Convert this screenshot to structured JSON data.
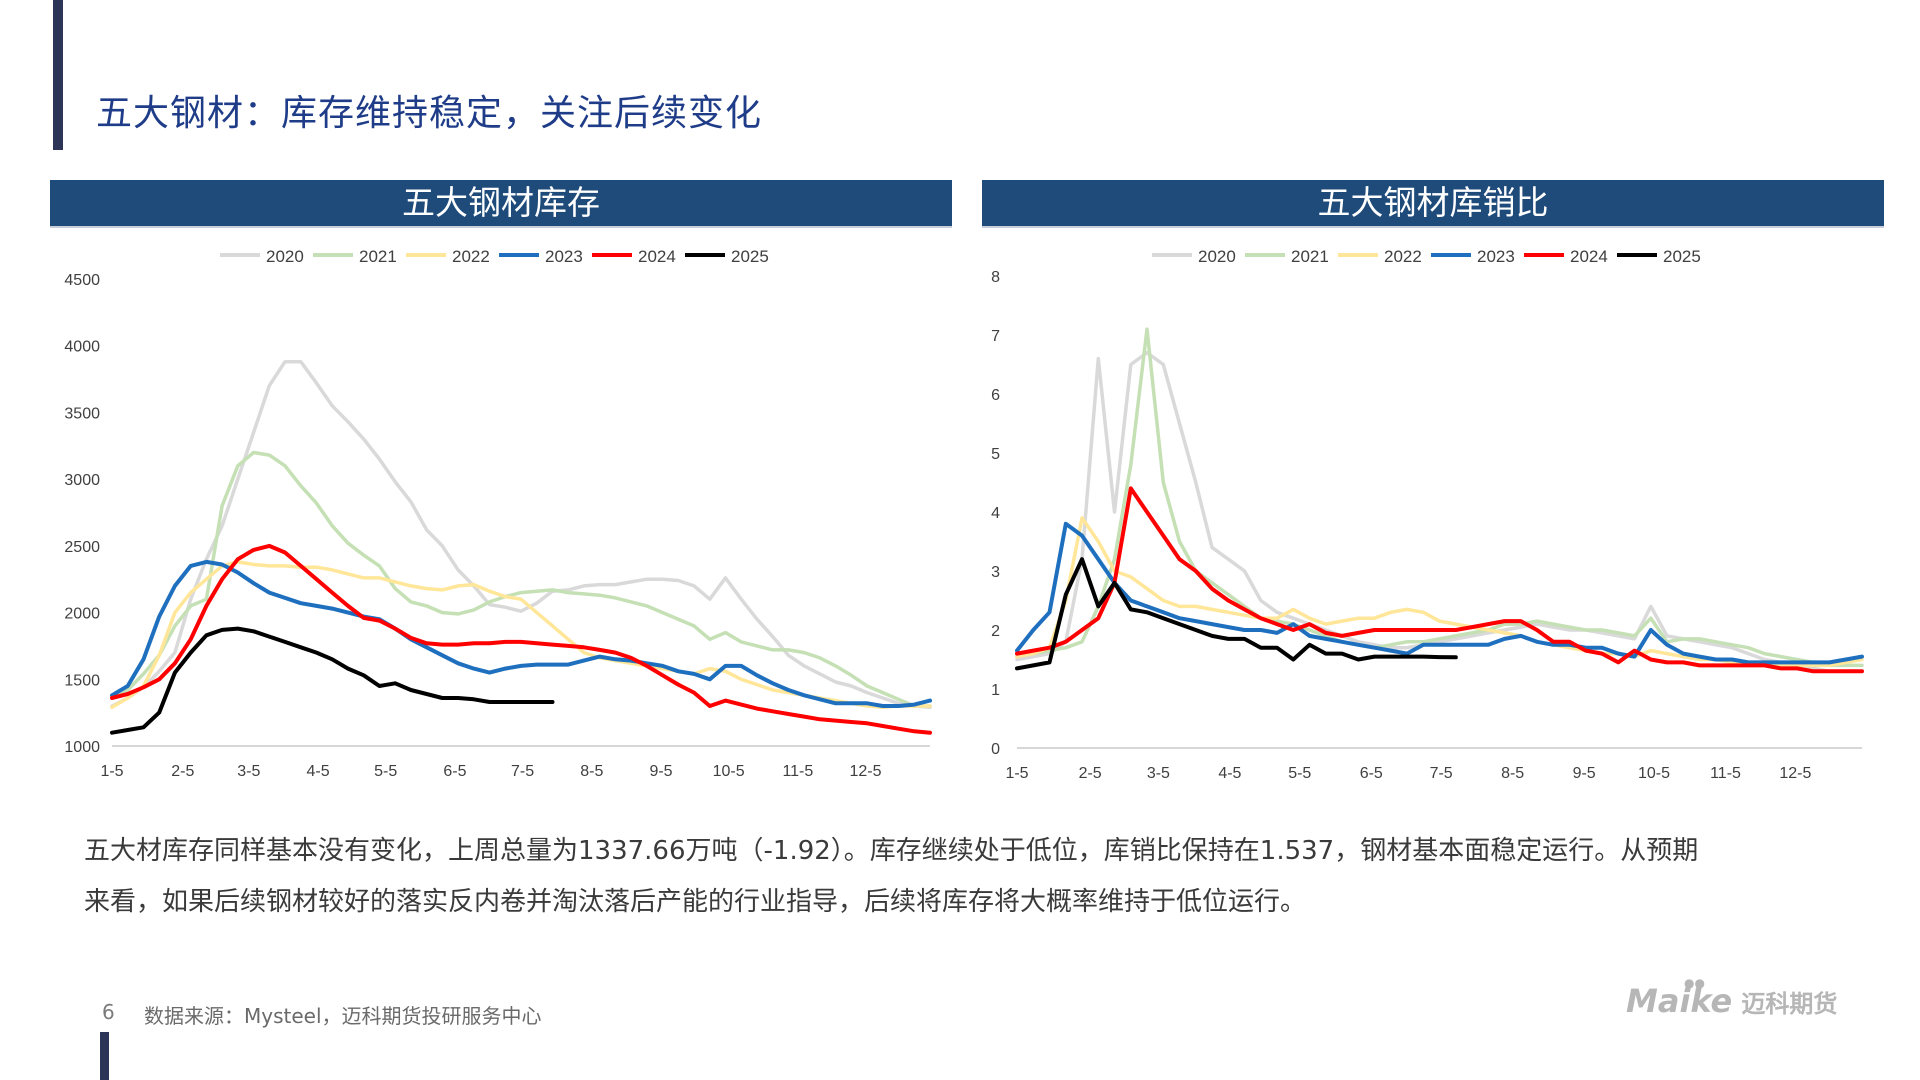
{
  "slide": {
    "title": "五大钢材：库存维持稳定，关注后续变化",
    "paragraph_line1": "五大材库存同样基本没有变化，上周总量为1337.66万吨（-1.92）。库存继续处于低位，库销比保持在1.537，钢材基本面稳定运行。从预期",
    "paragraph_line2": "来看，如果后续钢材较好的落实反内卷并淘汰落后产能的行业指导，后续将库存将大概率维持于低位运行。",
    "page_number": "6",
    "source": "数据来源：Mysteel，迈科期货投研服务中心",
    "logo_mark": "Maike",
    "logo_text": "迈科期货"
  },
  "series_colors": {
    "2020": "#d9d9d9",
    "2021": "#c5e0b4",
    "2022": "#ffe699",
    "2023": "#1f6fbf",
    "2024": "#ff0000",
    "2025": "#000000"
  },
  "chart_data": [
    {
      "type": "line",
      "title": "五大钢材库存",
      "xlabel": "",
      "ylabel": "",
      "xlim": [
        1,
        53
      ],
      "ylim": [
        1000,
        4500
      ],
      "yticks": [
        1000,
        1500,
        2000,
        2500,
        3000,
        3500,
        4000,
        4500
      ],
      "xticks": [
        {
          "label": "1-5",
          "week": 1
        },
        {
          "label": "2-5",
          "week": 5.5
        },
        {
          "label": "3-5",
          "week": 9.7
        },
        {
          "label": "4-5",
          "week": 14.1
        },
        {
          "label": "5-5",
          "week": 18.4
        },
        {
          "label": "6-5",
          "week": 22.8
        },
        {
          "label": "7-5",
          "week": 27.1
        },
        {
          "label": "8-5",
          "week": 31.5
        },
        {
          "label": "9-5",
          "week": 35.9
        },
        {
          "label": "10-5",
          "week": 40.2
        },
        {
          "label": "11-5",
          "week": 44.6
        },
        {
          "label": "12-5",
          "week": 48.9
        }
      ],
      "grid": false,
      "legend": "top-center",
      "series": [
        {
          "name": "2020",
          "values": [
            1300,
            1360,
            1440,
            1560,
            1700,
            2100,
            2400,
            2650,
            3000,
            3350,
            3700,
            3880,
            3880,
            3720,
            3550,
            3430,
            3300,
            3150,
            2980,
            2830,
            2620,
            2500,
            2320,
            2200,
            2060,
            2040,
            2010,
            2070,
            2160,
            2170,
            2200,
            2210,
            2210,
            2230,
            2250,
            2250,
            2240,
            2200,
            2100,
            2260,
            2100,
            1950,
            1820,
            1680,
            1600,
            1540,
            1480,
            1450,
            1400,
            1360,
            1320,
            1300,
            1290
          ]
        },
        {
          "name": "2021",
          "values": [
            1360,
            1420,
            1540,
            1680,
            1900,
            2050,
            2100,
            2800,
            3100,
            3200,
            3180,
            3100,
            2950,
            2820,
            2650,
            2520,
            2430,
            2350,
            2180,
            2080,
            2050,
            2000,
            1990,
            2020,
            2080,
            2120,
            2150,
            2160,
            2170,
            2150,
            2140,
            2130,
            2110,
            2080,
            2050,
            2000,
            1950,
            1900,
            1800,
            1850,
            1780,
            1750,
            1720,
            1720,
            1700,
            1660,
            1600,
            1530,
            1450,
            1400,
            1350,
            1300,
            1300
          ]
        },
        {
          "name": "2022",
          "values": [
            1290,
            1360,
            1450,
            1680,
            2000,
            2150,
            2250,
            2350,
            2380,
            2360,
            2350,
            2350,
            2340,
            2340,
            2320,
            2290,
            2260,
            2260,
            2230,
            2200,
            2180,
            2170,
            2200,
            2210,
            2160,
            2120,
            2100,
            2000,
            1900,
            1800,
            1700,
            1660,
            1640,
            1620,
            1600,
            1580,
            1560,
            1540,
            1580,
            1560,
            1500,
            1460,
            1420,
            1400,
            1380,
            1360,
            1340,
            1320,
            1300,
            1290,
            1300,
            1300,
            1300
          ]
        },
        {
          "name": "2023",
          "values": [
            1380,
            1450,
            1650,
            1970,
            2200,
            2350,
            2380,
            2360,
            2300,
            2220,
            2150,
            2110,
            2070,
            2050,
            2030,
            2000,
            1970,
            1950,
            1880,
            1800,
            1740,
            1680,
            1620,
            1580,
            1550,
            1580,
            1600,
            1610,
            1610,
            1610,
            1640,
            1670,
            1650,
            1640,
            1620,
            1600,
            1560,
            1540,
            1500,
            1600,
            1600,
            1530,
            1470,
            1420,
            1380,
            1350,
            1320,
            1320,
            1320,
            1300,
            1300,
            1310,
            1340
          ]
        },
        {
          "name": "2024",
          "values": [
            1360,
            1390,
            1440,
            1500,
            1620,
            1800,
            2050,
            2250,
            2400,
            2470,
            2500,
            2450,
            2350,
            2250,
            2150,
            2050,
            1960,
            1940,
            1880,
            1810,
            1770,
            1760,
            1760,
            1770,
            1770,
            1780,
            1780,
            1770,
            1760,
            1750,
            1740,
            1720,
            1700,
            1660,
            1600,
            1530,
            1460,
            1400,
            1300,
            1340,
            1310,
            1280,
            1260,
            1240,
            1220,
            1200,
            1190,
            1180,
            1170,
            1150,
            1130,
            1110,
            1100
          ]
        },
        {
          "name": "2025",
          "values": [
            1100,
            1120,
            1140,
            1250,
            1550,
            1700,
            1830,
            1870,
            1880,
            1860,
            1820,
            1780,
            1740,
            1700,
            1650,
            1580,
            1530,
            1450,
            1470,
            1420,
            1390,
            1360,
            1360,
            1350,
            1330,
            1330,
            1330,
            1330,
            1330
          ]
        }
      ]
    },
    {
      "type": "line",
      "title": "五大钢材库销比",
      "xlabel": "",
      "ylabel": "",
      "xlim": [
        1,
        53
      ],
      "ylim": [
        0,
        8
      ],
      "yticks": [
        0,
        1,
        2,
        3,
        4,
        5,
        6,
        7,
        8
      ],
      "xticks": [
        {
          "label": "1-5",
          "week": 1
        },
        {
          "label": "2-5",
          "week": 5.5
        },
        {
          "label": "3-5",
          "week": 9.7
        },
        {
          "label": "4-5",
          "week": 14.1
        },
        {
          "label": "5-5",
          "week": 18.4
        },
        {
          "label": "6-5",
          "week": 22.8
        },
        {
          "label": "7-5",
          "week": 27.1
        },
        {
          "label": "8-5",
          "week": 31.5
        },
        {
          "label": "9-5",
          "week": 35.9
        },
        {
          "label": "10-5",
          "week": 40.2
        },
        {
          "label": "11-5",
          "week": 44.6
        },
        {
          "label": "12-5",
          "week": 48.9
        }
      ],
      "grid": false,
      "legend": "top-center",
      "series": [
        {
          "name": "2020",
          "values": [
            1.5,
            1.55,
            1.6,
            1.8,
            3.2,
            6.6,
            4.0,
            6.5,
            6.7,
            6.5,
            5.5,
            4.5,
            3.4,
            3.2,
            3.0,
            2.5,
            2.3,
            2.2,
            2.1,
            2.0,
            1.9,
            1.8,
            1.75,
            1.7,
            1.7,
            1.75,
            1.8,
            1.85,
            1.9,
            1.95,
            2.0,
            2.05,
            2.1,
            2.05,
            2.0,
            2.0,
            1.95,
            1.9,
            1.85,
            2.4,
            1.9,
            1.85,
            1.8,
            1.75,
            1.7,
            1.6,
            1.5,
            1.45,
            1.4,
            1.35,
            1.3,
            1.3,
            1.3
          ]
        },
        {
          "name": "2021",
          "values": [
            1.55,
            1.6,
            1.65,
            1.7,
            1.8,
            2.4,
            3.2,
            4.8,
            7.1,
            4.5,
            3.5,
            3.0,
            2.8,
            2.6,
            2.4,
            2.2,
            2.15,
            2.1,
            2.0,
            1.9,
            1.8,
            1.75,
            1.7,
            1.75,
            1.8,
            1.8,
            1.85,
            1.9,
            1.95,
            2.0,
            2.1,
            2.1,
            2.15,
            2.1,
            2.05,
            2.0,
            2.0,
            1.95,
            1.9,
            2.2,
            1.8,
            1.85,
            1.85,
            1.8,
            1.75,
            1.7,
            1.6,
            1.55,
            1.5,
            1.45,
            1.4,
            1.4,
            1.4
          ]
        },
        {
          "name": "2022",
          "values": [
            1.55,
            1.6,
            1.7,
            2.5,
            3.9,
            3.5,
            3.0,
            2.9,
            2.7,
            2.5,
            2.4,
            2.4,
            2.35,
            2.3,
            2.25,
            2.2,
            2.2,
            2.35,
            2.2,
            2.1,
            2.15,
            2.2,
            2.2,
            2.3,
            2.35,
            2.3,
            2.15,
            2.1,
            2.05,
            2.0,
            1.95,
            1.9,
            1.8,
            1.75,
            1.7,
            1.65,
            1.6,
            1.6,
            1.55,
            1.65,
            1.6,
            1.55,
            1.5,
            1.5,
            1.45,
            1.45,
            1.4,
            1.4,
            1.4,
            1.4,
            1.4,
            1.45,
            1.5
          ]
        },
        {
          "name": "2023",
          "values": [
            1.65,
            2.0,
            2.3,
            3.8,
            3.6,
            3.2,
            2.8,
            2.5,
            2.4,
            2.3,
            2.2,
            2.15,
            2.1,
            2.05,
            2.0,
            2.0,
            1.95,
            2.1,
            1.9,
            1.85,
            1.8,
            1.75,
            1.7,
            1.65,
            1.6,
            1.75,
            1.75,
            1.75,
            1.75,
            1.75,
            1.85,
            1.9,
            1.8,
            1.75,
            1.75,
            1.7,
            1.7,
            1.6,
            1.55,
            2.0,
            1.75,
            1.6,
            1.55,
            1.5,
            1.5,
            1.45,
            1.45,
            1.45,
            1.45,
            1.45,
            1.45,
            1.5,
            1.55
          ]
        },
        {
          "name": "2024",
          "values": [
            1.6,
            1.65,
            1.7,
            1.8,
            2.0,
            2.2,
            2.8,
            4.4,
            4.0,
            3.6,
            3.2,
            3.0,
            2.7,
            2.5,
            2.35,
            2.2,
            2.1,
            2.0,
            2.1,
            1.95,
            1.9,
            1.95,
            2.0,
            2.0,
            2.0,
            2.0,
            2.0,
            2.0,
            2.05,
            2.1,
            2.15,
            2.15,
            2.0,
            1.8,
            1.8,
            1.65,
            1.6,
            1.45,
            1.65,
            1.5,
            1.45,
            1.45,
            1.4,
            1.4,
            1.4,
            1.4,
            1.4,
            1.35,
            1.35,
            1.3,
            1.3,
            1.3,
            1.3
          ]
        },
        {
          "name": "2025",
          "values": [
            1.35,
            1.4,
            1.45,
            2.6,
            3.2,
            2.4,
            2.8,
            2.35,
            2.3,
            2.2,
            2.1,
            2.0,
            1.9,
            1.85,
            1.85,
            1.7,
            1.7,
            1.5,
            1.75,
            1.6,
            1.6,
            1.5,
            1.55,
            1.55,
            1.55,
            1.55,
            1.54,
            1.537
          ]
        }
      ]
    }
  ]
}
